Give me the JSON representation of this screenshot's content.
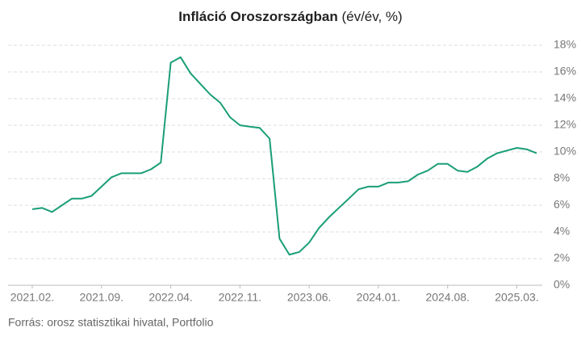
{
  "chart_data": {
    "type": "line",
    "title": "Infláció Oroszországban",
    "subtitle": "(év/év, %)",
    "source": "Forrás: orosz statisztikai hivatal, Portfolio",
    "categories": [
      "2021.02.",
      null,
      null,
      null,
      null,
      null,
      null,
      "2021.09.",
      null,
      null,
      null,
      null,
      null,
      null,
      "2022.04.",
      null,
      null,
      null,
      null,
      null,
      null,
      "2022.11.",
      null,
      null,
      null,
      null,
      null,
      null,
      "2023.06.",
      null,
      null,
      null,
      null,
      null,
      null,
      "2024.01.",
      null,
      null,
      null,
      null,
      null,
      null,
      "2024.08.",
      null,
      null,
      null,
      null,
      null,
      null,
      "2025.03.",
      null,
      null
    ],
    "series": [
      {
        "name": "Infláció",
        "color": "#1a9e77",
        "values": [
          5.7,
          5.8,
          5.5,
          6.0,
          6.5,
          6.5,
          6.7,
          7.4,
          8.1,
          8.4,
          8.4,
          8.4,
          8.7,
          9.2,
          16.7,
          17.1,
          15.9,
          15.1,
          14.3,
          13.7,
          12.6,
          12.0,
          11.9,
          11.8,
          11.0,
          3.5,
          2.3,
          2.5,
          3.2,
          4.3,
          5.1,
          5.8,
          6.5,
          7.2,
          7.4,
          7.4,
          7.7,
          7.7,
          7.8,
          8.3,
          8.6,
          9.1,
          9.1,
          8.6,
          8.5,
          8.9,
          9.5,
          9.9,
          10.1,
          10.3,
          10.2,
          9.9
        ]
      }
    ],
    "ylim": [
      0,
      18
    ],
    "yticks": [
      {
        "value": 0,
        "label": "0%"
      },
      {
        "value": 2,
        "label": "2%"
      },
      {
        "value": 4,
        "label": "4%"
      },
      {
        "value": 6,
        "label": "6%"
      },
      {
        "value": 8,
        "label": "8%"
      },
      {
        "value": 10,
        "label": "10%"
      },
      {
        "value": 12,
        "label": "12%"
      },
      {
        "value": 14,
        "label": "14%"
      },
      {
        "value": 16,
        "label": "16%"
      },
      {
        "value": 18,
        "label": "18%"
      }
    ],
    "grid": true,
    "y_axis_side": "right"
  }
}
